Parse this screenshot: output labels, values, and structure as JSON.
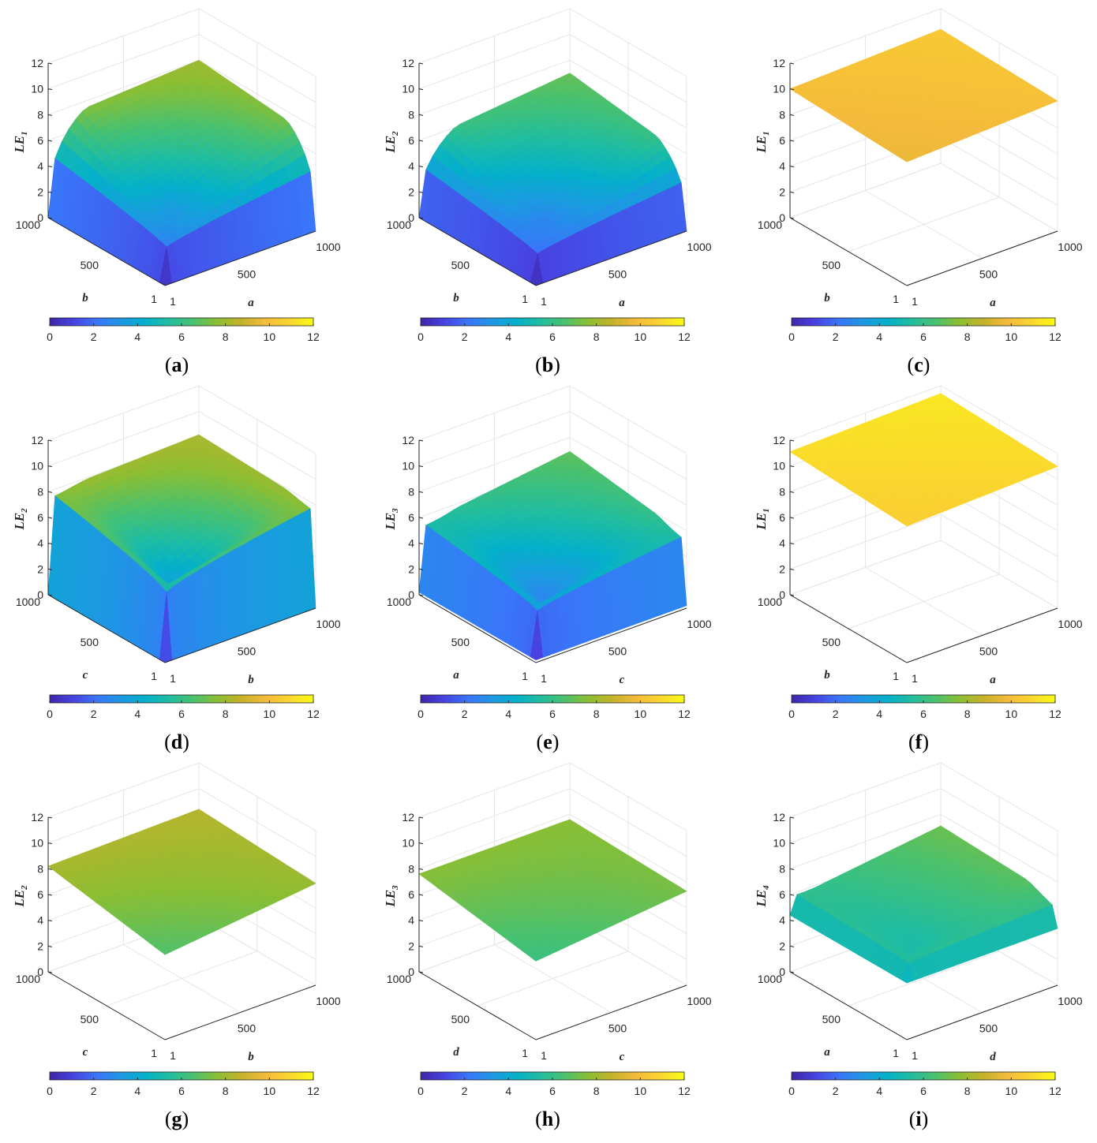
{
  "colormap": [
    "#3e26a8",
    "#4743e2",
    "#3976f9",
    "#1d98e3",
    "#04b1c9",
    "#21bd9f",
    "#4ac16e",
    "#8bbe33",
    "#c5b22a",
    "#f4ba3b",
    "#fad62e",
    "#f9fb14"
  ],
  "chart_data": [
    {
      "panel": "a",
      "caption": "(a)",
      "type": "surface",
      "zlabel": "LE",
      "zsub": "1",
      "xlabel": "a",
      "ylabel": "b",
      "x_ticks": [
        "1",
        "500",
        "1000"
      ],
      "y_ticks": [
        "1",
        "500",
        "1000"
      ],
      "z_ticks": [
        "0",
        "2",
        "4",
        "6",
        "8",
        "10",
        "12"
      ],
      "zlim": [
        0,
        12
      ],
      "colorbar_ticks": [
        "0",
        "2",
        "4",
        "6",
        "8",
        "10",
        "12"
      ],
      "clim": [
        0,
        12
      ],
      "corners": {
        "front": 0.0,
        "left": 7.3,
        "right": 7.1,
        "back": 8.0
      },
      "shape": "cusp_deep"
    },
    {
      "panel": "b",
      "caption": "(b)",
      "type": "surface",
      "zlabel": "LE",
      "zsub": "2",
      "xlabel": "a",
      "ylabel": "b",
      "x_ticks": [
        "1",
        "500",
        "1000"
      ],
      "y_ticks": [
        "1",
        "500",
        "1000"
      ],
      "z_ticks": [
        "0",
        "2",
        "4",
        "6",
        "8",
        "10",
        "12"
      ],
      "zlim": [
        0,
        12
      ],
      "colorbar_ticks": [
        "0",
        "2",
        "4",
        "6",
        "8",
        "10",
        "12"
      ],
      "clim": [
        0,
        12
      ],
      "corners": {
        "front": 0.0,
        "left": 5.8,
        "right": 5.7,
        "back": 7.0
      },
      "shape": "cusp_deep"
    },
    {
      "panel": "c",
      "caption": "(c)",
      "type": "surface",
      "zlabel": "LE",
      "zsub": "1",
      "xlabel": "a",
      "ylabel": "b",
      "x_ticks": [
        "1",
        "500",
        "1000"
      ],
      "y_ticks": [
        "1",
        "500",
        "1000"
      ],
      "z_ticks": [
        "0",
        "2",
        "4",
        "6",
        "8",
        "10",
        "12"
      ],
      "zlim": [
        0,
        12
      ],
      "colorbar_ticks": [
        "0",
        "2",
        "4",
        "6",
        "8",
        "10",
        "12"
      ],
      "clim": [
        0,
        12
      ],
      "corners": {
        "front": 9.6,
        "left": 10.0,
        "right": 10.1,
        "back": 10.4
      },
      "shape": "flat"
    },
    {
      "panel": "d",
      "caption": "(d)",
      "type": "surface",
      "zlabel": "LE",
      "zsub": "2",
      "xlabel": "b",
      "ylabel": "c",
      "x_ticks": [
        "1",
        "500",
        "1000"
      ],
      "y_ticks": [
        "1",
        "500",
        "1000"
      ],
      "z_ticks": [
        "0",
        "2",
        "4",
        "6",
        "8",
        "10",
        "12"
      ],
      "zlim": [
        0,
        12
      ],
      "colorbar_ticks": [
        "0",
        "2",
        "4",
        "6",
        "8",
        "10",
        "12"
      ],
      "clim": [
        0,
        12
      ],
      "corners": {
        "front": 0.0,
        "left": 7.8,
        "right": 7.8,
        "back": 8.2
      },
      "shape": "cusp_edge"
    },
    {
      "panel": "e",
      "caption": "(e)",
      "type": "surface",
      "zlabel": "LE",
      "zsub": "3",
      "xlabel": "c",
      "ylabel": "a",
      "x_ticks": [
        "1",
        "500",
        "1000"
      ],
      "y_ticks": [
        "1",
        "500",
        "1000"
      ],
      "z_ticks": [
        "0",
        "2",
        "4",
        "6",
        "8",
        "10",
        "12"
      ],
      "zlim": [
        0,
        12
      ],
      "colorbar_ticks": [
        "0",
        "2",
        "4",
        "6",
        "8",
        "10",
        "12"
      ],
      "clim": [
        0,
        12
      ],
      "corners": {
        "front": 0.2,
        "left": 5.3,
        "right": 5.6,
        "back": 6.9
      },
      "shape": "cusp_edge"
    },
    {
      "panel": "f",
      "caption": "(f)",
      "type": "surface",
      "zlabel": "LE",
      "zsub": "1",
      "xlabel": "a",
      "ylabel": "b",
      "x_ticks": [
        "1",
        "500",
        "1000"
      ],
      "y_ticks": [
        "1",
        "500",
        "1000"
      ],
      "z_ticks": [
        "0",
        "2",
        "4",
        "6",
        "8",
        "10",
        "12"
      ],
      "zlim": [
        0,
        12
      ],
      "colorbar_ticks": [
        "0",
        "2",
        "4",
        "6",
        "8",
        "10",
        "12"
      ],
      "clim": [
        0,
        12
      ],
      "corners": {
        "front": 10.6,
        "left": 11.1,
        "right": 11.0,
        "back": 11.4
      },
      "shape": "flat"
    },
    {
      "panel": "g",
      "caption": "(g)",
      "type": "surface",
      "zlabel": "LE",
      "zsub": "2",
      "xlabel": "b",
      "ylabel": "c",
      "x_ticks": [
        "1",
        "500",
        "1000"
      ],
      "y_ticks": [
        "1",
        "500",
        "1000"
      ],
      "z_ticks": [
        "0",
        "2",
        "4",
        "6",
        "8",
        "10",
        "12"
      ],
      "zlim": [
        0,
        12
      ],
      "colorbar_ticks": [
        "0",
        "2",
        "4",
        "6",
        "8",
        "10",
        "12"
      ],
      "clim": [
        0,
        12
      ],
      "corners": {
        "front": 6.6,
        "left": 8.2,
        "right": 7.9,
        "back": 8.4
      },
      "shape": "flat"
    },
    {
      "panel": "h",
      "caption": "(h)",
      "type": "surface",
      "zlabel": "LE",
      "zsub": "3",
      "xlabel": "c",
      "ylabel": "d",
      "x_ticks": [
        "1",
        "500",
        "1000"
      ],
      "y_ticks": [
        "1",
        "500",
        "1000"
      ],
      "z_ticks": [
        "0",
        "2",
        "4",
        "6",
        "8",
        "10",
        "12"
      ],
      "zlim": [
        0,
        12
      ],
      "colorbar_ticks": [
        "0",
        "2",
        "4",
        "6",
        "8",
        "10",
        "12"
      ],
      "clim": [
        0,
        12
      ],
      "corners": {
        "front": 6.1,
        "left": 7.6,
        "right": 7.3,
        "back": 7.6
      },
      "shape": "flat"
    },
    {
      "panel": "i",
      "caption": "(i)",
      "type": "surface",
      "zlabel": "LE",
      "zsub": "4",
      "xlabel": "d",
      "ylabel": "a",
      "x_ticks": [
        "1",
        "500",
        "1000"
      ],
      "y_ticks": [
        "1",
        "500",
        "1000"
      ],
      "z_ticks": [
        "0",
        "2",
        "4",
        "6",
        "8",
        "10",
        "12"
      ],
      "zlim": [
        0,
        12
      ],
      "colorbar_ticks": [
        "0",
        "2",
        "4",
        "6",
        "8",
        "10",
        "12"
      ],
      "clim": [
        0,
        12
      ],
      "corners": {
        "front": 4.4,
        "left": 5.6,
        "right": 6.7,
        "back": 7.1
      },
      "shape": "cusp_mild"
    }
  ]
}
